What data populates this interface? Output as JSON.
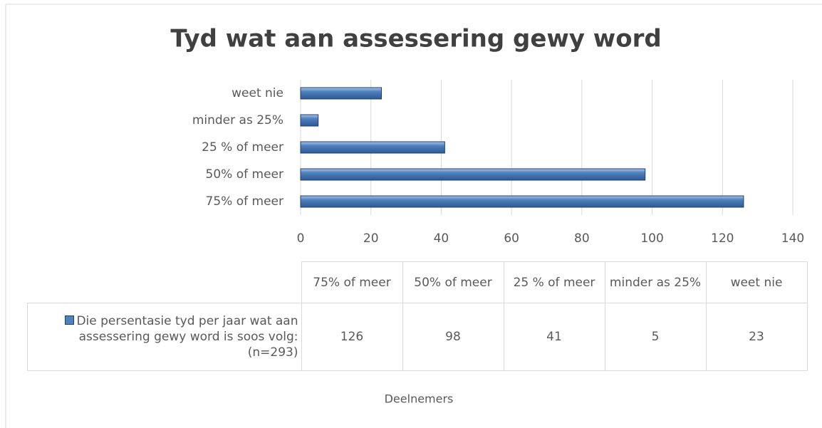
{
  "chart_data": {
    "type": "bar",
    "orientation": "horizontal",
    "title": "Tyd wat aan assessering gewy word",
    "categories": [
      "75% of meer",
      "50% of meer",
      "25 % of meer",
      "minder as 25%",
      "weet nie"
    ],
    "series": [
      {
        "name": "Die persentasie tyd per jaar wat aan assessering gewy word is soos volg: (n=293)",
        "color": "#4f81bd",
        "values": [
          126,
          98,
          41,
          5,
          23
        ]
      }
    ],
    "xlabel": "Deelnemers",
    "xlim": [
      0,
      140
    ],
    "xticks": [
      0,
      20,
      40,
      60,
      80,
      100,
      120,
      140
    ],
    "grid": true
  }
}
